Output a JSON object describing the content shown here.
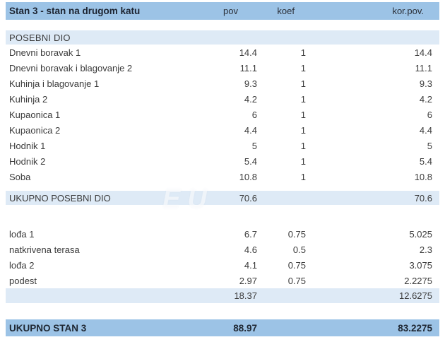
{
  "colors": {
    "header_blue": "#9cc3e6",
    "band_blue": "#deeaf6",
    "text": "#3b3b3b",
    "title_text": "#1c2330"
  },
  "watermark": {
    "text": "EU"
  },
  "table": {
    "title": "Stan 3 - stan na drugom katu",
    "columns": [
      "pov",
      "koef",
      "kor.pov."
    ],
    "posebni": {
      "header": "POSEBNI DIO",
      "rows": [
        {
          "label": "Dnevni boravak 1",
          "pov": "14.4",
          "koef": "1",
          "korpov": "14.4"
        },
        {
          "label": "Dnevni boravak i blagovanje 2",
          "pov": "11.1",
          "koef": "1",
          "korpov": "11.1"
        },
        {
          "label": "Kuhinja i blagovanje 1",
          "pov": "9.3",
          "koef": "1",
          "korpov": "9.3"
        },
        {
          "label": "Kuhinja 2",
          "pov": "4.2",
          "koef": "1",
          "korpov": "4.2"
        },
        {
          "label": "Kupaonica 1",
          "pov": "6",
          "koef": "1",
          "korpov": "6"
        },
        {
          "label": "Kupaonica 2",
          "pov": "4.4",
          "koef": "1",
          "korpov": "4.4"
        },
        {
          "label": "Hodnik 1",
          "pov": "5",
          "koef": "1",
          "korpov": "5"
        },
        {
          "label": "Hodnik 2",
          "pov": "5.4",
          "koef": "1",
          "korpov": "5.4"
        },
        {
          "label": "Soba",
          "pov": "10.8",
          "koef": "1",
          "korpov": "10.8"
        }
      ],
      "total": {
        "label": "UKUPNO POSEBNI DIO",
        "pov": "70.6",
        "koef": "",
        "korpov": "70.6"
      }
    },
    "section2": {
      "rows": [
        {
          "label": "lođa 1",
          "pov": "6.7",
          "koef": "0.75",
          "korpov": "5.025"
        },
        {
          "label": "natkrivena terasa",
          "pov": "4.6",
          "koef": "0.5",
          "korpov": "2.3"
        },
        {
          "label": "lođa 2",
          "pov": "4.1",
          "koef": "0.75",
          "korpov": "3.075"
        },
        {
          "label": "podest",
          "pov": "2.97",
          "koef": "0.75",
          "korpov": "2.2275"
        }
      ],
      "subtotal": {
        "pov": "18.37",
        "koef": "",
        "korpov": "12.6275"
      }
    },
    "grand_total": {
      "label": "UKUPNO STAN 3",
      "pov": "88.97",
      "koef": "",
      "korpov": "83.2275"
    }
  }
}
